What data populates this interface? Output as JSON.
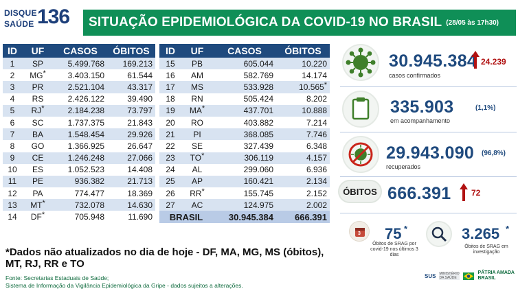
{
  "header": {
    "logo_line1": "DISQUE",
    "logo_line2": "SAÚDE",
    "logo_number": "136",
    "title": "SITUAÇÃO EPIDEMIOLÓGICA DA COVID-19 NO BRASIL",
    "date": "(28/05 às 17h30)"
  },
  "table": {
    "columns": [
      "ID",
      "UF",
      "CASOS",
      "ÓBITOS"
    ],
    "rows_left": [
      {
        "id": "1",
        "uf": "SP",
        "casos": "5.499.768",
        "obitos": "169.213",
        "uf_ast": "",
        "ob_ast": ""
      },
      {
        "id": "2",
        "uf": "MG",
        "casos": "3.403.150",
        "obitos": "61.544",
        "uf_ast": "*",
        "ob_ast": ""
      },
      {
        "id": "3",
        "uf": "PR",
        "casos": "2.521.104",
        "obitos": "43.317",
        "uf_ast": "",
        "ob_ast": ""
      },
      {
        "id": "4",
        "uf": "RS",
        "casos": "2.426.122",
        "obitos": "39.490",
        "uf_ast": "",
        "ob_ast": ""
      },
      {
        "id": "5",
        "uf": "RJ",
        "casos": "2.184.238",
        "obitos": "73.797",
        "uf_ast": "*",
        "ob_ast": ""
      },
      {
        "id": "6",
        "uf": "SC",
        "casos": "1.737.375",
        "obitos": "21.843",
        "uf_ast": "",
        "ob_ast": ""
      },
      {
        "id": "7",
        "uf": "BA",
        "casos": "1.548.454",
        "obitos": "29.926",
        "uf_ast": "",
        "ob_ast": ""
      },
      {
        "id": "8",
        "uf": "GO",
        "casos": "1.366.925",
        "obitos": "26.647",
        "uf_ast": "",
        "ob_ast": ""
      },
      {
        "id": "9",
        "uf": "CE",
        "casos": "1.246.248",
        "obitos": "27.066",
        "uf_ast": "",
        "ob_ast": ""
      },
      {
        "id": "10",
        "uf": "ES",
        "casos": "1.052.523",
        "obitos": "14.408",
        "uf_ast": "",
        "ob_ast": ""
      },
      {
        "id": "11",
        "uf": "PE",
        "casos": "936.382",
        "obitos": "21.713",
        "uf_ast": "",
        "ob_ast": ""
      },
      {
        "id": "12",
        "uf": "PA",
        "casos": "774.477",
        "obitos": "18.369",
        "uf_ast": "",
        "ob_ast": ""
      },
      {
        "id": "13",
        "uf": "MT",
        "casos": "732.078",
        "obitos": "14.630",
        "uf_ast": "*",
        "ob_ast": ""
      },
      {
        "id": "14",
        "uf": "DF",
        "casos": "705.948",
        "obitos": "11.690",
        "uf_ast": "*",
        "ob_ast": ""
      }
    ],
    "rows_right": [
      {
        "id": "15",
        "uf": "PB",
        "casos": "605.044",
        "obitos": "10.220",
        "uf_ast": "",
        "ob_ast": ""
      },
      {
        "id": "16",
        "uf": "AM",
        "casos": "582.769",
        "obitos": "14.174",
        "uf_ast": "",
        "ob_ast": ""
      },
      {
        "id": "17",
        "uf": "MS",
        "casos": "533.928",
        "obitos": "10.565",
        "uf_ast": "",
        "ob_ast": "*"
      },
      {
        "id": "18",
        "uf": "RN",
        "casos": "505.424",
        "obitos": "8.202",
        "uf_ast": "",
        "ob_ast": ""
      },
      {
        "id": "19",
        "uf": "MA",
        "casos": "437.701",
        "obitos": "10.888",
        "uf_ast": "*",
        "ob_ast": ""
      },
      {
        "id": "20",
        "uf": "RO",
        "casos": "403.882",
        "obitos": "7.214",
        "uf_ast": "",
        "ob_ast": ""
      },
      {
        "id": "21",
        "uf": "PI",
        "casos": "368.085",
        "obitos": "7.746",
        "uf_ast": "",
        "ob_ast": ""
      },
      {
        "id": "22",
        "uf": "SE",
        "casos": "327.439",
        "obitos": "6.348",
        "uf_ast": "",
        "ob_ast": ""
      },
      {
        "id": "23",
        "uf": "TO",
        "casos": "306.119",
        "obitos": "4.157",
        "uf_ast": "*",
        "ob_ast": ""
      },
      {
        "id": "24",
        "uf": "AL",
        "casos": "299.060",
        "obitos": "6.936",
        "uf_ast": "",
        "ob_ast": ""
      },
      {
        "id": "25",
        "uf": "AP",
        "casos": "160.421",
        "obitos": "2.134",
        "uf_ast": "",
        "ob_ast": ""
      },
      {
        "id": "26",
        "uf": "RR",
        "casos": "155.745",
        "obitos": "2.152",
        "uf_ast": "*",
        "ob_ast": ""
      },
      {
        "id": "27",
        "uf": "AC",
        "casos": "124.975",
        "obitos": "2.002",
        "uf_ast": "",
        "ob_ast": ""
      }
    ],
    "total": {
      "label": "BRASIL",
      "casos": "30.945.384",
      "obitos": "666.391"
    }
  },
  "footnote": "*Dados não atualizados no dia de hoje - DF, MA, MG, MS (óbitos), MT, RJ, RR e TO",
  "source_line1": "Fonte: Secretarias Estaduais de Saúde;",
  "source_line2": "Sistema de Informação da Vigilância Epidemiológica da Gripe - dados sujeitos a alterações.",
  "stats": {
    "confirmed": {
      "value": "30.945.384",
      "delta": "24.239",
      "label": "casos confirmados"
    },
    "monitoring": {
      "value": "335.903",
      "pct": "(1,1%)",
      "label": "em acompanhamento"
    },
    "recovered": {
      "value": "29.943.090",
      "pct": "(96,8%)",
      "label": "recuperados"
    },
    "deaths": {
      "pill": "ÓBITOS",
      "value": "666.391",
      "delta": "72"
    },
    "srag_deaths": {
      "value": "75",
      "ast": "*",
      "label": "Óbitos de SRAG por covid-19 nos últimos 3 dias",
      "badge": "3"
    },
    "srag_investigation": {
      "value": "3.265",
      "ast": "*",
      "label": "Óbitos de SRAG em investigação"
    }
  },
  "footer_logos": {
    "sus": "SUS",
    "ministry": "MINISTÉRIO DA SAÚDE",
    "gov_line1": "PÁTRIA AMADA",
    "gov_line2": "BRASIL"
  },
  "colors": {
    "header_green": "#0f8f57",
    "table_header": "#1f4a7e",
    "row_alt": "#d8e3f1",
    "accent_red": "#b11212",
    "virus_green": "#3f7f2a"
  },
  "icons": [
    "virus-icon",
    "clipboard-icon",
    "recovered-virus-icon",
    "calendar-icon",
    "magnifier-icon",
    "arrow-up-icon"
  ]
}
